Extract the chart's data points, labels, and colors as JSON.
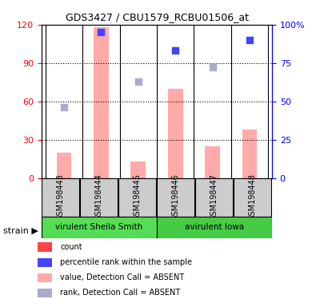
{
  "title": "GDS3427 / CBU1579_RCBU01506_at",
  "samples": [
    "GSM198443",
    "GSM198444",
    "GSM198445",
    "GSM198446",
    "GSM198447",
    "GSM198448"
  ],
  "groups": [
    "virulent Sheila Smith",
    "virulent Sheila Smith",
    "virulent Sheila Smith",
    "avirulent Iowa",
    "avirulent Iowa",
    "avirulent Iowa"
  ],
  "group_colors": [
    "#66ff66",
    "#66ff66",
    "#66ff66",
    "#33cc33",
    "#33cc33",
    "#33cc33"
  ],
  "bar_values": [
    20,
    118,
    13,
    70,
    25,
    38
  ],
  "bar_absent": [
    true,
    true,
    true,
    true,
    true,
    true
  ],
  "rank_values": [
    46,
    95,
    63,
    83,
    72,
    90
  ],
  "rank_absent": [
    true,
    false,
    true,
    false,
    true,
    false
  ],
  "left_ylim": [
    0,
    120
  ],
  "right_ylim": [
    0,
    100
  ],
  "left_yticks": [
    0,
    30,
    60,
    90,
    120
  ],
  "right_yticks": [
    0,
    25,
    50,
    75,
    100
  ],
  "right_yticklabels": [
    "0",
    "25",
    "50",
    "75",
    "100%"
  ],
  "bar_color_present": "#ff4444",
  "bar_color_absent": "#ffaaaa",
  "rank_color_present": "#4444ff",
  "rank_color_absent": "#aaaacc",
  "grid_color": "#000000",
  "legend_items": [
    {
      "label": "count",
      "color": "#ff4444",
      "marker": "s"
    },
    {
      "label": "percentile rank within the sample",
      "color": "#4444ff",
      "marker": "s"
    },
    {
      "label": "value, Detection Call = ABSENT",
      "color": "#ffaaaa",
      "marker": "s"
    },
    {
      "label": "rank, Detection Call = ABSENT",
      "color": "#aaaacc",
      "marker": "s"
    }
  ]
}
